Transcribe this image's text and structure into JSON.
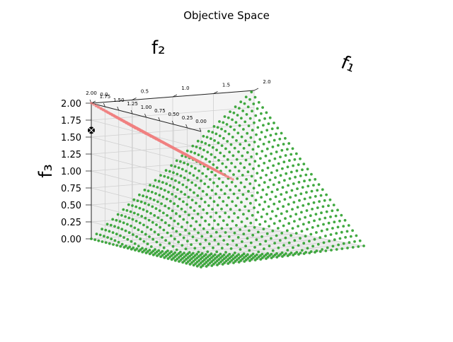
{
  "chart_data": {
    "type": "scatter",
    "projection": "3d",
    "title": "Objective Space",
    "xlabel": "f₁",
    "ylabel": "f₂",
    "zlabel": "f₃",
    "xlim": [
      0,
      2
    ],
    "ylim": [
      0,
      2
    ],
    "zlim": [
      0,
      2
    ],
    "x_ticks": [
      "0.0",
      "0.5",
      "1.0",
      "1.5",
      "2.0"
    ],
    "y_ticks": [
      "0.00",
      "0.25",
      "0.50",
      "0.75",
      "1.00",
      "1.25",
      "1.50",
      "1.75",
      "2.00"
    ],
    "z_ticks": [
      "0.00",
      "0.25",
      "0.50",
      "0.75",
      "1.00",
      "1.25",
      "1.50",
      "1.75",
      "2.00"
    ],
    "grid": true,
    "legend": "none",
    "colors": {
      "pareto_front": "#2ca02c",
      "dominated_region": "#f08080",
      "reference_point": "#000000"
    },
    "series": [
      {
        "kind": "surface-grid",
        "color": "#2ca02c",
        "description_formula": "f1 = 2*u, f2 = 2*v, f3 = (u - v)^2 * 2 + ... sampled on uniform grid",
        "grid_size": [
          31,
          31
        ]
      },
      {
        "kind": "surface-grid",
        "color": "#f08080",
        "grid_size": [
          20,
          20
        ]
      },
      {
        "kind": "point",
        "color": "#000000",
        "x": 0.0,
        "y": 2.0,
        "z": 1.6
      }
    ]
  }
}
